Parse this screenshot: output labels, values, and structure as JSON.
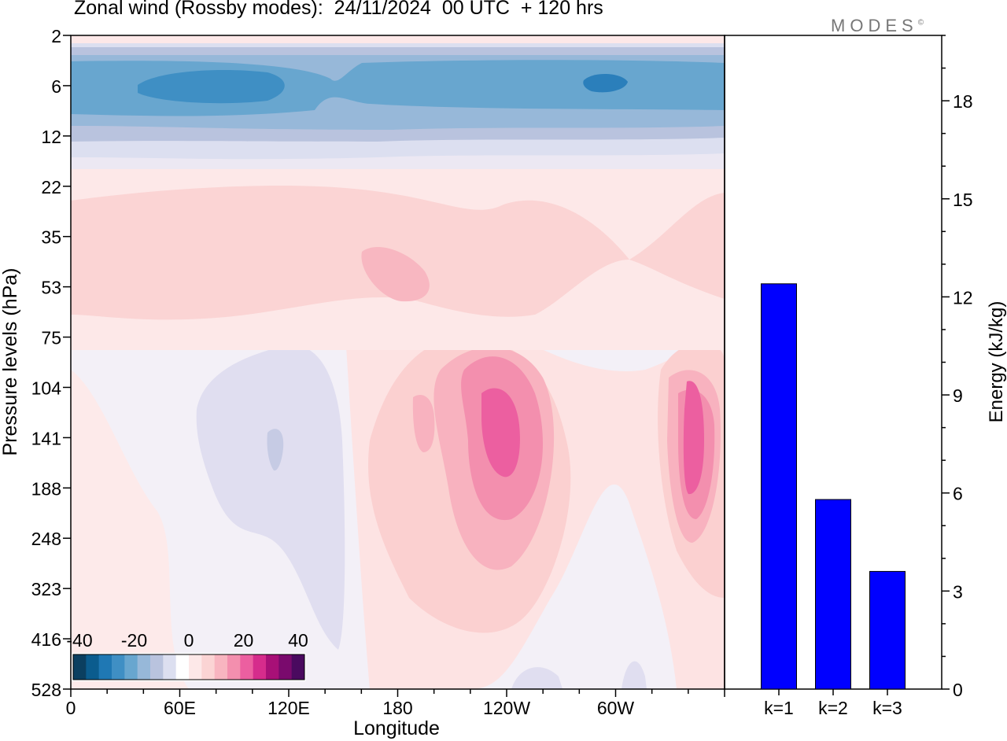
{
  "title": "Zonal wind (Rossby modes):  24/11/2024  00 UTC  + 120 hrs",
  "brand": "MODES",
  "brand_mark": "©",
  "colors": {
    "negative_scale": [
      "#0b3f60",
      "#0b5c8e",
      "#1f78b4",
      "#3f8fc4",
      "#68a6cf",
      "#97b8d9",
      "#b9c3de",
      "#dcdff0"
    ],
    "positive_scale": [
      "#fde8e8",
      "#fbd4d4",
      "#f8b5c0",
      "#f38fae",
      "#ec5fa0",
      "#d62c8c",
      "#a81077",
      "#7a0a6d",
      "#4a0a5f"
    ],
    "bar": "#0000ff"
  },
  "chart_data": [
    {
      "type": "heatmap",
      "title": "Zonal wind (Rossby modes):  24/11/2024  00 UTC  + 120 hrs",
      "xlabel": "Longitude",
      "ylabel": "Pressure levels (hPa)",
      "x_ticks": [
        "0",
        "60E",
        "120E",
        "180",
        "120W",
        "60W"
      ],
      "y_ticks": [
        "2",
        "6",
        "12",
        "22",
        "35",
        "53",
        "75",
        "104",
        "141",
        "188",
        "248",
        "323",
        "416",
        "528"
      ],
      "colorbar": {
        "ticks": [
          "-40",
          "-20",
          "0",
          "20",
          "40"
        ],
        "range": [
          -40,
          40
        ],
        "placement": "bottom-left"
      }
    },
    {
      "type": "bar",
      "categories": [
        "k=1",
        "k=2",
        "k=3"
      ],
      "values": [
        12.4,
        5.8,
        3.6
      ],
      "ylabel": "Energy (kJ/kg)",
      "y_ticks": [
        "0",
        "3",
        "6",
        "9",
        "12",
        "15",
        "18"
      ],
      "ylim": [
        0,
        20
      ]
    }
  ]
}
